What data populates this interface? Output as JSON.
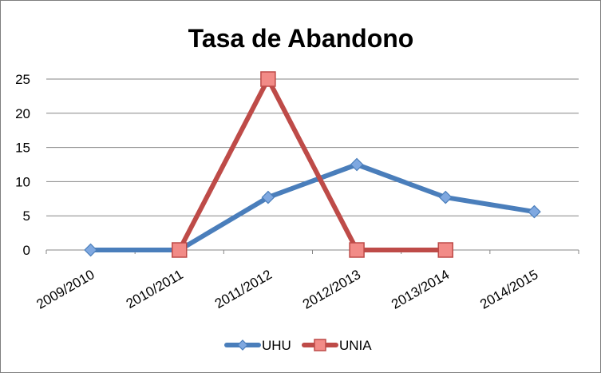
{
  "chart_data": {
    "type": "line",
    "title": "Tasa de Abandono",
    "categories": [
      "2009/2010",
      "2010/2011",
      "2011/2012",
      "2012/2013",
      "2013/2014",
      "2014/2015"
    ],
    "ylim": [
      0,
      25
    ],
    "yticks": [
      0,
      5,
      10,
      15,
      20,
      25
    ],
    "grid": true,
    "legend_position": "bottom",
    "series": [
      {
        "name": "UHU",
        "values": [
          0,
          0,
          7.7,
          12.5,
          7.7,
          5.6
        ],
        "color": "#4a7ebb",
        "marker": "diamond",
        "marker_color": "#7fa8e0"
      },
      {
        "name": "UNIA",
        "values": [
          null,
          0,
          25,
          0,
          0,
          null
        ],
        "color": "#be4b48",
        "marker": "square",
        "marker_color": "#f28b87"
      }
    ]
  }
}
